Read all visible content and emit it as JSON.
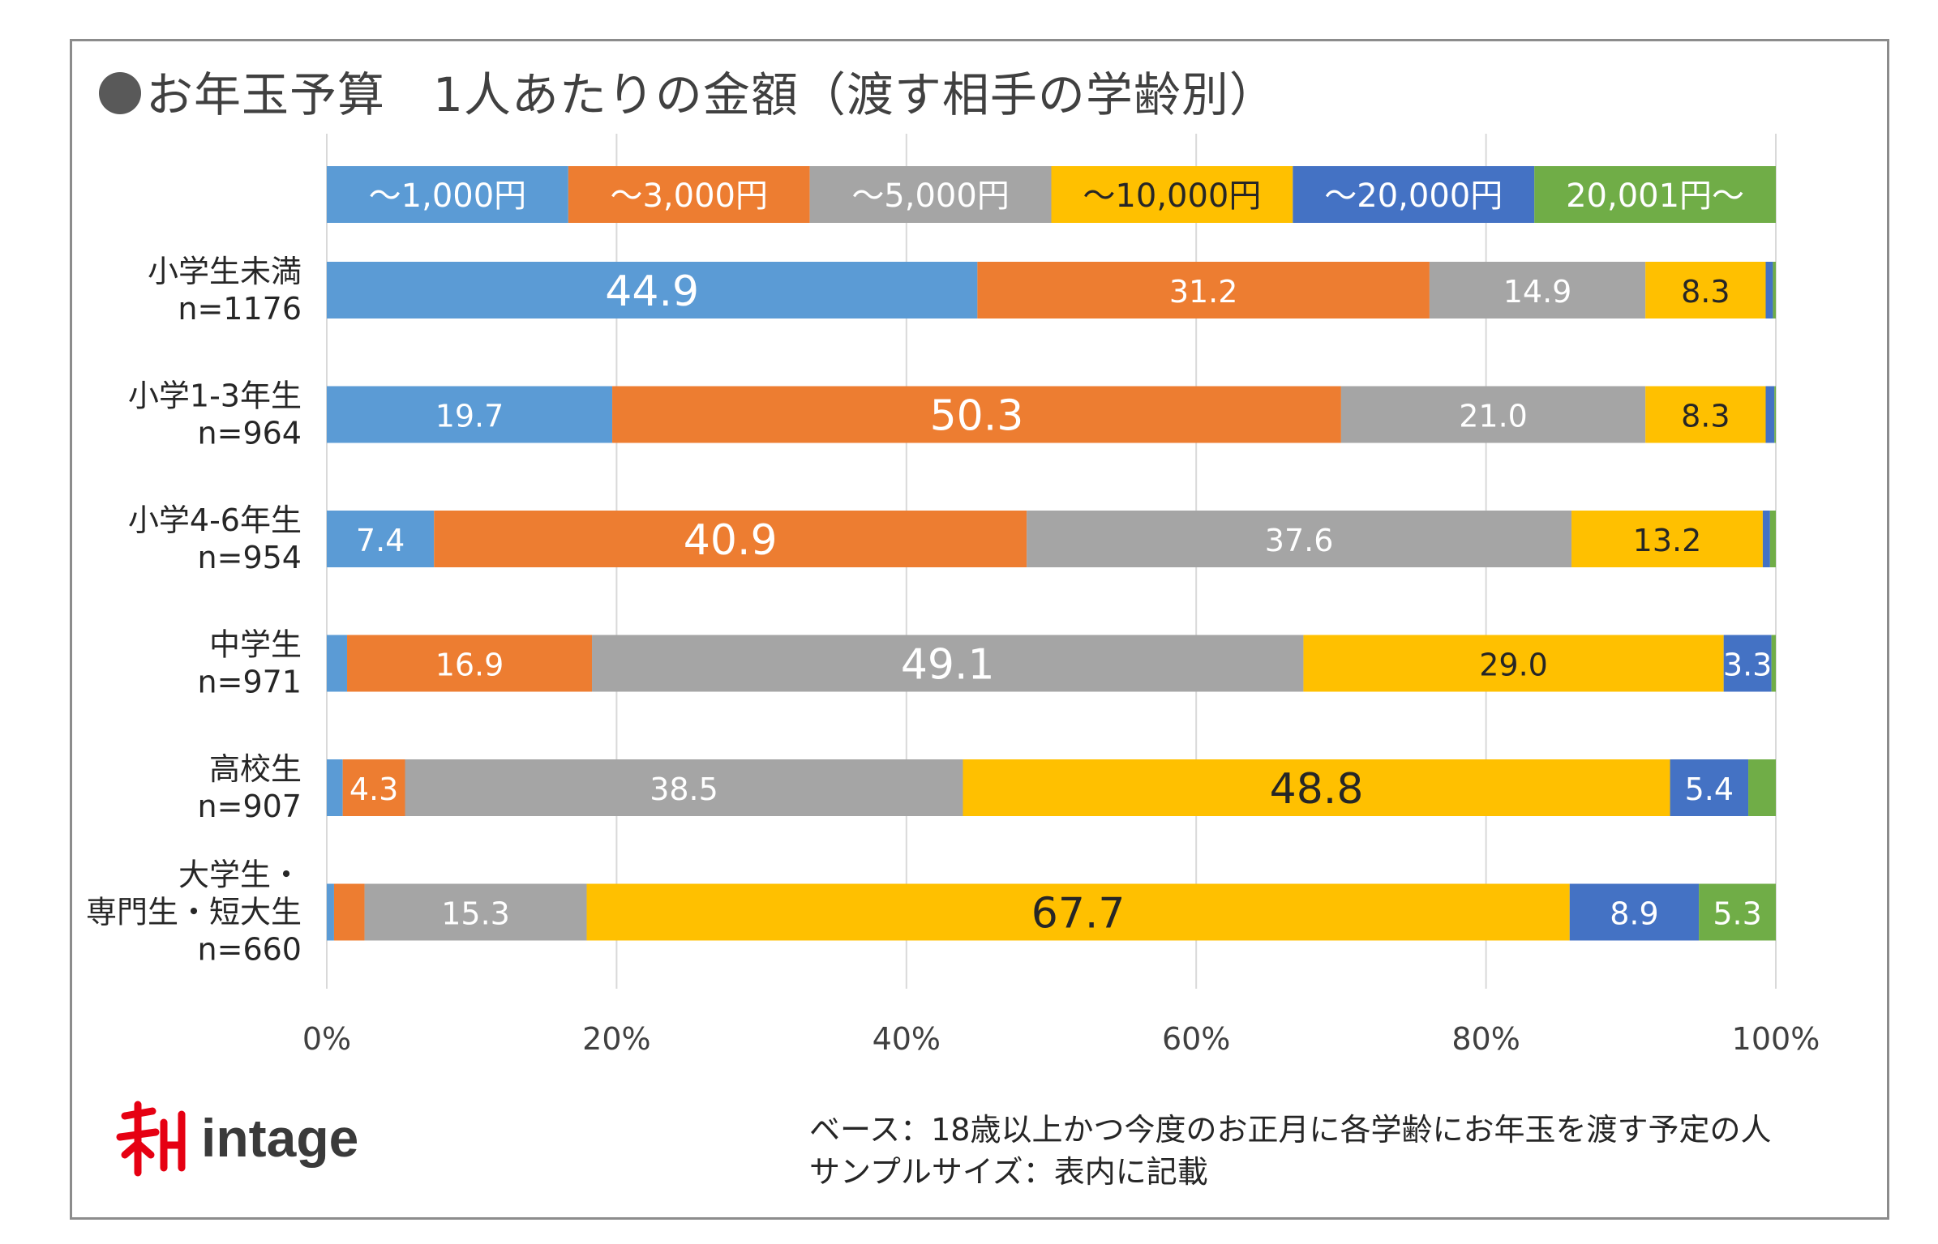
{
  "title": "お年玉予算　1人あたりの金額（渡す相手の学齢別）",
  "chart_data": {
    "type": "bar",
    "orientation": "horizontal",
    "stacked": true,
    "title": "お年玉予算　1人あたりの金額（渡す相手の学齢別）",
    "legend": [
      "～1,000円",
      "～3,000円",
      "～5,000円",
      "～10,000円",
      "～20,000円",
      "20,001円～"
    ],
    "legend_position": "top",
    "colors": [
      "#5b9bd5",
      "#ed7d31",
      "#a5a5a5",
      "#ffc000",
      "#4472c4",
      "#70ad47"
    ],
    "categories": [
      [
        "小学生未満",
        "n=1176"
      ],
      [
        "小学1-3年生",
        "n=964"
      ],
      [
        "小学4-6年生",
        "n=954"
      ],
      [
        "中学生",
        "n=971"
      ],
      [
        "高校生",
        "n=907"
      ],
      [
        "大学生・",
        "専門生・短大生",
        "n=660"
      ]
    ],
    "series": [
      {
        "name": "～1,000円",
        "values": [
          44.9,
          19.7,
          7.4,
          1.4,
          1.1,
          0.5
        ]
      },
      {
        "name": "～3,000円",
        "values": [
          31.2,
          50.3,
          40.9,
          16.9,
          4.3,
          2.1
        ]
      },
      {
        "name": "～5,000円",
        "values": [
          14.9,
          21.0,
          37.6,
          49.1,
          38.5,
          15.3
        ]
      },
      {
        "name": "～10,000円",
        "values": [
          8.3,
          8.3,
          13.2,
          29.0,
          48.8,
          67.7
        ]
      },
      {
        "name": "～20,000円",
        "values": [
          0.5,
          0.6,
          0.5,
          3.3,
          5.4,
          8.9
        ]
      },
      {
        "name": "20,001円～",
        "values": [
          0.2,
          0.1,
          0.4,
          0.3,
          1.9,
          5.3
        ]
      }
    ],
    "data_labels": [
      [
        "44.9",
        "31.2",
        "14.9",
        "8.3",
        "",
        ""
      ],
      [
        "19.7",
        "50.3",
        "21.0",
        "8.3",
        "",
        ""
      ],
      [
        "7.4",
        "40.9",
        "37.6",
        "13.2",
        "",
        ""
      ],
      [
        "",
        "16.9",
        "49.1",
        "29.0",
        "3.3",
        ""
      ],
      [
        "",
        "4.3",
        "38.5",
        "48.8",
        "5.4",
        ""
      ],
      [
        "",
        "",
        "15.3",
        "67.7",
        "8.9",
        "5.3"
      ]
    ],
    "emphasize_max": true,
    "xlim": [
      0,
      100
    ],
    "xticks": [
      "0%",
      "20%",
      "40%",
      "60%",
      "80%",
      "100%"
    ],
    "xlabel": "",
    "ylabel": "",
    "grid": true
  },
  "logo": {
    "text": "intage"
  },
  "footnote": {
    "line1": "ベース：18歳以上かつ今度のお正月に各学齢にお年玉を渡す予定の人",
    "line2": "サンプルサイズ：表内に記載"
  }
}
